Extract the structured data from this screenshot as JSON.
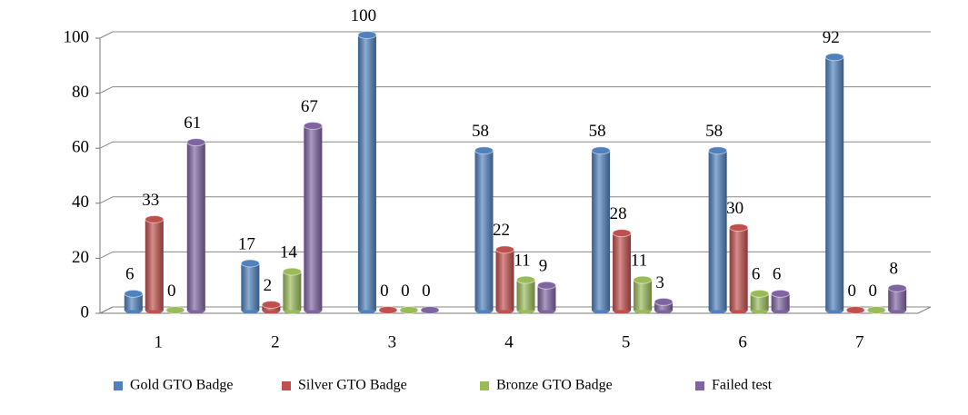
{
  "chart_data": {
    "type": "bar",
    "categories": [
      "1",
      "2",
      "3",
      "4",
      "5",
      "6",
      "7"
    ],
    "series": [
      {
        "name": "Gold GTO Badge",
        "color": "#4f81bd",
        "values": [
          6,
          17,
          100,
          58,
          58,
          58,
          92
        ]
      },
      {
        "name": "Silver GTO Badge",
        "color": "#c0504d",
        "values": [
          33,
          2,
          0,
          22,
          28,
          30,
          0
        ]
      },
      {
        "name": "Bronze GTO Badge",
        "color": "#9bbb59",
        "values": [
          0,
          14,
          0,
          11,
          11,
          6,
          0
        ]
      },
      {
        "name": "Failed test",
        "color": "#8064a2",
        "values": [
          61,
          67,
          0,
          9,
          3,
          6,
          8
        ]
      }
    ],
    "ylim": [
      0,
      100
    ],
    "yticks": [
      0,
      20,
      40,
      60,
      80,
      100
    ],
    "grid": true,
    "legend": "bottom"
  }
}
